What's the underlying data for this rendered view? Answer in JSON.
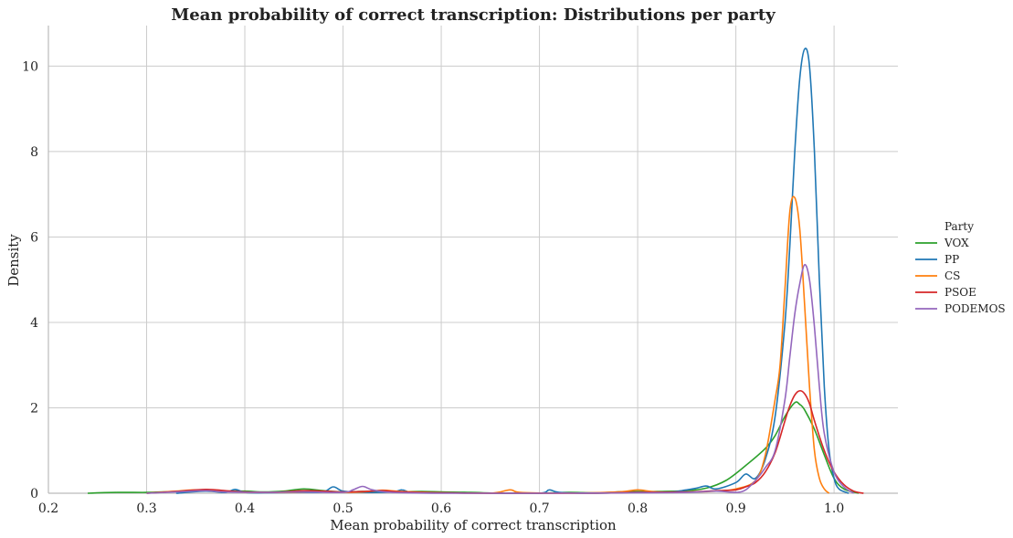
{
  "chart_data": {
    "type": "line",
    "title": "Mean probability of correct transcription: Distributions per party",
    "xlabel": "Mean probability of correct transcription",
    "ylabel": "Density",
    "xlim": [
      0.2,
      1.065
    ],
    "ylim": [
      0,
      10.95
    ],
    "xticks": [
      0.2,
      0.3,
      0.4,
      0.5,
      0.6,
      0.7,
      0.8,
      0.9,
      1.0
    ],
    "xtick_labels": [
      "0.2",
      "0.3",
      "0.4",
      "0.5",
      "0.6",
      "0.7",
      "0.8",
      "0.9",
      "1.0"
    ],
    "yticks": [
      0,
      2,
      4,
      6,
      8,
      10
    ],
    "ytick_labels": [
      "0",
      "2",
      "4",
      "6",
      "8",
      "10"
    ],
    "grid": true,
    "legend": {
      "title": "Party",
      "placement": "right"
    },
    "series": [
      {
        "name": "VOX",
        "color": "#2ca02c",
        "points": [
          [
            0.24,
            0.0
          ],
          [
            0.27,
            0.02
          ],
          [
            0.3,
            0.02
          ],
          [
            0.33,
            0.04
          ],
          [
            0.35,
            0.06
          ],
          [
            0.38,
            0.05
          ],
          [
            0.4,
            0.05
          ],
          [
            0.42,
            0.03
          ],
          [
            0.44,
            0.05
          ],
          [
            0.46,
            0.1
          ],
          [
            0.48,
            0.06
          ],
          [
            0.5,
            0.03
          ],
          [
            0.52,
            0.04
          ],
          [
            0.55,
            0.03
          ],
          [
            0.58,
            0.04
          ],
          [
            0.6,
            0.03
          ],
          [
            0.63,
            0.02
          ],
          [
            0.66,
            0.0
          ],
          [
            0.7,
            0.0
          ],
          [
            0.73,
            0.02
          ],
          [
            0.76,
            0.01
          ],
          [
            0.79,
            0.04
          ],
          [
            0.82,
            0.04
          ],
          [
            0.85,
            0.06
          ],
          [
            0.87,
            0.12
          ],
          [
            0.89,
            0.3
          ],
          [
            0.91,
            0.65
          ],
          [
            0.93,
            1.05
          ],
          [
            0.94,
            1.35
          ],
          [
            0.95,
            1.8
          ],
          [
            0.96,
            2.12
          ],
          [
            0.965,
            2.08
          ],
          [
            0.97,
            1.95
          ],
          [
            0.98,
            1.5
          ],
          [
            0.99,
            0.9
          ],
          [
            1.0,
            0.35
          ],
          [
            1.01,
            0.1
          ],
          [
            1.025,
            0.0
          ]
        ]
      },
      {
        "name": "PP",
        "color": "#1f77b4",
        "points": [
          [
            0.33,
            0.0
          ],
          [
            0.36,
            0.05
          ],
          [
            0.38,
            0.02
          ],
          [
            0.39,
            0.09
          ],
          [
            0.4,
            0.02
          ],
          [
            0.42,
            0.01
          ],
          [
            0.46,
            0.02
          ],
          [
            0.48,
            0.03
          ],
          [
            0.49,
            0.15
          ],
          [
            0.5,
            0.05
          ],
          [
            0.52,
            0.02
          ],
          [
            0.55,
            0.03
          ],
          [
            0.56,
            0.08
          ],
          [
            0.57,
            0.02
          ],
          [
            0.6,
            0.01
          ],
          [
            0.65,
            0.0
          ],
          [
            0.7,
            0.0
          ],
          [
            0.71,
            0.08
          ],
          [
            0.72,
            0.02
          ],
          [
            0.75,
            0.0
          ],
          [
            0.8,
            0.02
          ],
          [
            0.83,
            0.02
          ],
          [
            0.85,
            0.08
          ],
          [
            0.86,
            0.12
          ],
          [
            0.87,
            0.17
          ],
          [
            0.88,
            0.1
          ],
          [
            0.9,
            0.25
          ],
          [
            0.91,
            0.45
          ],
          [
            0.92,
            0.35
          ],
          [
            0.93,
            0.8
          ],
          [
            0.94,
            1.8
          ],
          [
            0.95,
            4.0
          ],
          [
            0.955,
            5.8
          ],
          [
            0.96,
            8.0
          ],
          [
            0.965,
            9.7
          ],
          [
            0.97,
            10.4
          ],
          [
            0.975,
            10.0
          ],
          [
            0.98,
            8.0
          ],
          [
            0.985,
            5.0
          ],
          [
            0.99,
            2.5
          ],
          [
            0.995,
            1.0
          ],
          [
            1.0,
            0.35
          ],
          [
            1.005,
            0.1
          ],
          [
            1.015,
            0.0
          ]
        ]
      },
      {
        "name": "CS",
        "color": "#ff7f0e",
        "points": [
          [
            0.3,
            0.0
          ],
          [
            0.33,
            0.05
          ],
          [
            0.35,
            0.08
          ],
          [
            0.37,
            0.05
          ],
          [
            0.4,
            0.02
          ],
          [
            0.45,
            0.02
          ],
          [
            0.48,
            0.04
          ],
          [
            0.5,
            0.02
          ],
          [
            0.52,
            0.03
          ],
          [
            0.54,
            0.07
          ],
          [
            0.56,
            0.04
          ],
          [
            0.6,
            0.01
          ],
          [
            0.65,
            0.0
          ],
          [
            0.67,
            0.08
          ],
          [
            0.68,
            0.02
          ],
          [
            0.72,
            0.0
          ],
          [
            0.78,
            0.03
          ],
          [
            0.8,
            0.08
          ],
          [
            0.82,
            0.03
          ],
          [
            0.86,
            0.03
          ],
          [
            0.88,
            0.05
          ],
          [
            0.9,
            0.1
          ],
          [
            0.92,
            0.3
          ],
          [
            0.93,
            0.9
          ],
          [
            0.94,
            2.2
          ],
          [
            0.945,
            3.0
          ],
          [
            0.95,
            4.8
          ],
          [
            0.955,
            6.6
          ],
          [
            0.96,
            6.92
          ],
          [
            0.965,
            6.2
          ],
          [
            0.97,
            4.4
          ],
          [
            0.975,
            2.5
          ],
          [
            0.98,
            1.0
          ],
          [
            0.985,
            0.35
          ],
          [
            0.99,
            0.1
          ],
          [
            0.995,
            0.0
          ]
        ]
      },
      {
        "name": "PSOE",
        "color": "#d62728",
        "points": [
          [
            0.3,
            0.0
          ],
          [
            0.33,
            0.04
          ],
          [
            0.36,
            0.09
          ],
          [
            0.38,
            0.06
          ],
          [
            0.4,
            0.03
          ],
          [
            0.43,
            0.02
          ],
          [
            0.46,
            0.06
          ],
          [
            0.48,
            0.05
          ],
          [
            0.5,
            0.03
          ],
          [
            0.52,
            0.04
          ],
          [
            0.54,
            0.06
          ],
          [
            0.56,
            0.03
          ],
          [
            0.6,
            0.01
          ],
          [
            0.65,
            0.0
          ],
          [
            0.75,
            0.0
          ],
          [
            0.8,
            0.02
          ],
          [
            0.85,
            0.03
          ],
          [
            0.88,
            0.06
          ],
          [
            0.9,
            0.08
          ],
          [
            0.91,
            0.15
          ],
          [
            0.92,
            0.25
          ],
          [
            0.93,
            0.5
          ],
          [
            0.94,
            0.95
          ],
          [
            0.95,
            1.7
          ],
          [
            0.955,
            2.05
          ],
          [
            0.96,
            2.3
          ],
          [
            0.965,
            2.4
          ],
          [
            0.97,
            2.33
          ],
          [
            0.975,
            2.1
          ],
          [
            0.98,
            1.7
          ],
          [
            0.99,
            1.0
          ],
          [
            1.0,
            0.5
          ],
          [
            1.01,
            0.2
          ],
          [
            1.02,
            0.05
          ],
          [
            1.03,
            0.0
          ]
        ]
      },
      {
        "name": "PODEMOS",
        "color": "#9467bd",
        "points": [
          [
            0.3,
            0.0
          ],
          [
            0.33,
            0.03
          ],
          [
            0.36,
            0.06
          ],
          [
            0.38,
            0.03
          ],
          [
            0.42,
            0.02
          ],
          [
            0.46,
            0.03
          ],
          [
            0.5,
            0.02
          ],
          [
            0.51,
            0.08
          ],
          [
            0.52,
            0.16
          ],
          [
            0.53,
            0.08
          ],
          [
            0.55,
            0.02
          ],
          [
            0.6,
            0.0
          ],
          [
            0.7,
            0.0
          ],
          [
            0.8,
            0.01
          ],
          [
            0.85,
            0.02
          ],
          [
            0.88,
            0.05
          ],
          [
            0.9,
            0.02
          ],
          [
            0.91,
            0.08
          ],
          [
            0.92,
            0.3
          ],
          [
            0.93,
            0.6
          ],
          [
            0.94,
            1.0
          ],
          [
            0.95,
            2.2
          ],
          [
            0.955,
            3.2
          ],
          [
            0.96,
            4.2
          ],
          [
            0.965,
            4.9
          ],
          [
            0.97,
            5.35
          ],
          [
            0.975,
            5.0
          ],
          [
            0.98,
            3.9
          ],
          [
            0.985,
            2.5
          ],
          [
            0.99,
            1.4
          ],
          [
            1.0,
            0.5
          ],
          [
            1.01,
            0.15
          ],
          [
            1.02,
            0.0
          ]
        ]
      }
    ]
  }
}
